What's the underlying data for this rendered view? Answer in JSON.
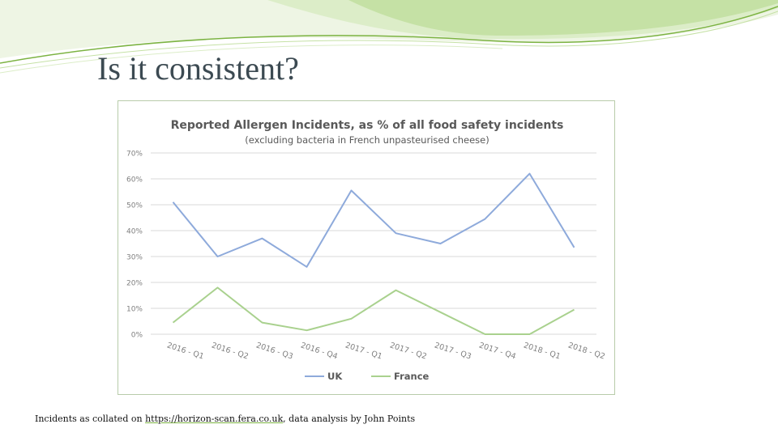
{
  "slide": {
    "title": "Is it consistent?",
    "footer_prefix": "Incidents as collated on ",
    "footer_link": "https://horizon-scan.fera.co.uk",
    "footer_suffix": ", data analysis by John Points"
  },
  "colors": {
    "uk": "#8eaadb",
    "france": "#a9d18e",
    "grid": "#d9d9d9",
    "deco_green": "#9ccc65",
    "deco_light": "#dcedc8"
  },
  "chart_data": {
    "type": "line",
    "title": "Reported Allergen Incidents, as % of all food safety incidents",
    "subtitle": "(excluding bacteria in French unpasteurised cheese)",
    "categories": [
      "2016 - Q1",
      "2016 - Q2",
      "2016 - Q3",
      "2016 - Q4",
      "2017 - Q1",
      "2017 - Q2",
      "2017 - Q3",
      "2017 - Q4",
      "2018 - Q1",
      "2018 - Q2"
    ],
    "y_ticks": [
      "0%",
      "10%",
      "20%",
      "30%",
      "40%",
      "50%",
      "60%",
      "70%"
    ],
    "ylim": [
      0,
      70
    ],
    "grid": true,
    "legend_position": "bottom",
    "series": [
      {
        "name": "UK",
        "values": [
          51,
          30,
          37,
          26,
          55.5,
          39,
          35,
          44.5,
          62,
          33.5
        ]
      },
      {
        "name": "France",
        "values": [
          4.5,
          18,
          4.5,
          1.5,
          6,
          17,
          8.5,
          0,
          0,
          9.5
        ]
      }
    ]
  }
}
